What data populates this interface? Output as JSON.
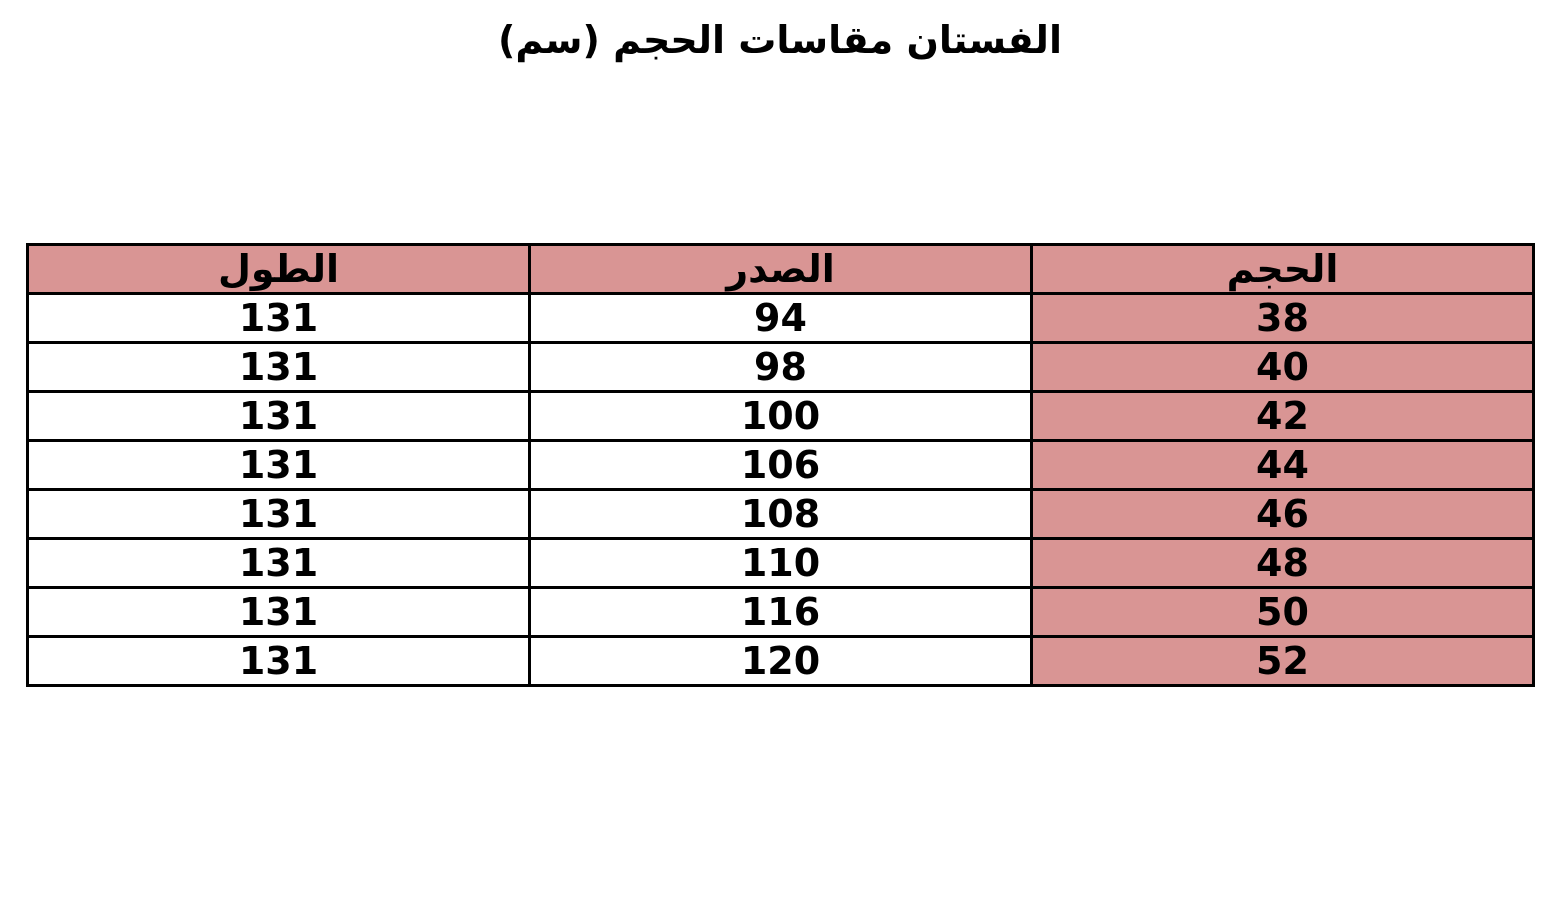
{
  "title": "الفستان مقاسات الحجم (سم)",
  "accent_color": "#d99594",
  "table": {
    "headers": [
      "الحجم",
      "الصدر",
      "الطول"
    ],
    "rows": [
      [
        "38",
        "94",
        "131"
      ],
      [
        "40",
        "98",
        "131"
      ],
      [
        "42",
        "100",
        "131"
      ],
      [
        "44",
        "106",
        "131"
      ],
      [
        "46",
        "108",
        "131"
      ],
      [
        "48",
        "110",
        "131"
      ],
      [
        "50",
        "116",
        "131"
      ],
      [
        "52",
        "120",
        "131"
      ]
    ]
  }
}
